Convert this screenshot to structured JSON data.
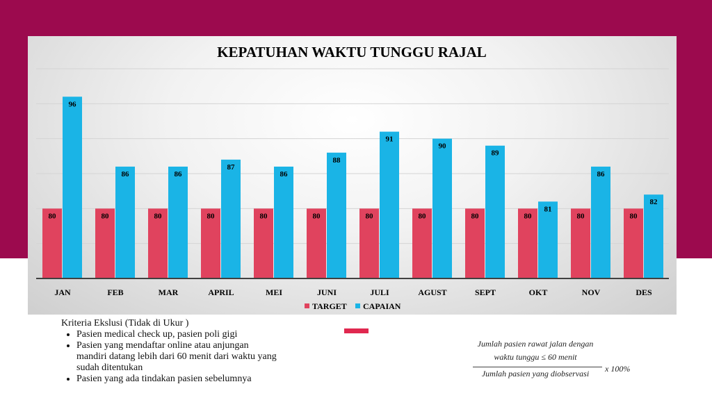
{
  "chart_data": {
    "type": "bar",
    "title": "KEPATUHAN WAKTU TUNGGU RAJAL",
    "categories": [
      "JAN",
      "FEB",
      "MAR",
      "APRIL",
      "MEI",
      "JUNI",
      "JULI",
      "AGUST",
      "SEPT",
      "OKT",
      "NOV",
      "DES"
    ],
    "series": [
      {
        "name": "TARGET",
        "color": "#e0435e",
        "values": [
          80,
          80,
          80,
          80,
          80,
          80,
          80,
          80,
          80,
          80,
          80,
          80
        ]
      },
      {
        "name": "CAPAIAN",
        "color": "#1ab4e6",
        "values": [
          96,
          86,
          86,
          87,
          86,
          88,
          91,
          90,
          89,
          81,
          86,
          82
        ]
      }
    ],
    "ylim": [
      70,
      100
    ],
    "grid": true,
    "legend": "bottom",
    "data_labels": true
  },
  "notes": {
    "heading": "Kriteria Ekslusi (Tidak di Ukur )",
    "items": [
      "Pasien medical check up, pasien poli gigi",
      "Pasien yang mendaftar online atau anjungan mandiri datang lebih dari 60 menit dari waktu yang sudah ditentukan",
      "Pasien yang ada tindakan pasien sebelumnya"
    ]
  },
  "formula": {
    "numerator_1": "Jumlah pasien rawat jalan dengan",
    "numerator_2": "waktu tunggu  ≤ 60 menit",
    "denominator": "Jumlah pasien yang diobservasi",
    "multiplier": "x 100%"
  },
  "colors": {
    "background_band": "#9c0a4e",
    "marker": "#e0284f"
  }
}
